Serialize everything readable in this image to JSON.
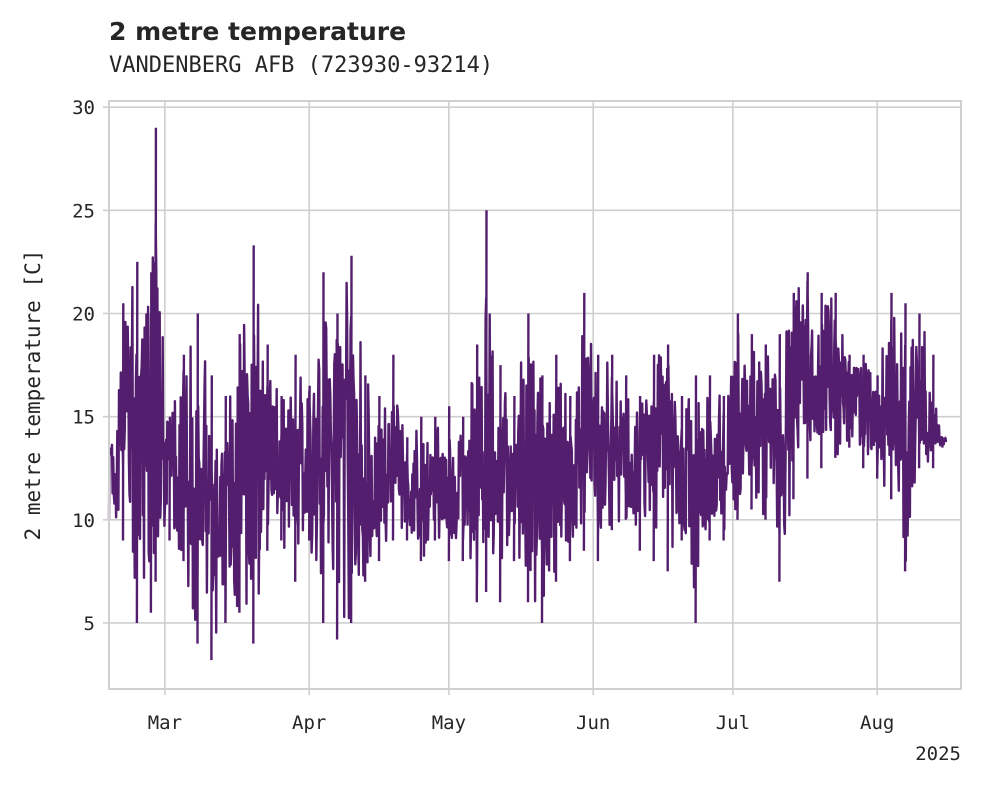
{
  "chart_data": {
    "type": "line",
    "title": "2 metre temperature",
    "subtitle": "VANDENBERG AFB (723930-93214)",
    "xlabel": "",
    "ylabel": "2 metre temperature [C]",
    "x_range": [
      "2025-02-17",
      "2025-08-19"
    ],
    "ylim": [
      1.8,
      30.3
    ],
    "y_ticks": [
      5,
      10,
      15,
      20,
      25,
      30
    ],
    "x_ticks": [
      {
        "date": "2025-03-01",
        "label": "Mar"
      },
      {
        "date": "2025-04-01",
        "label": "Apr"
      },
      {
        "date": "2025-05-01",
        "label": "May"
      },
      {
        "date": "2025-06-01",
        "label": "Jun"
      },
      {
        "date": "2025-07-01",
        "label": "Jul"
      },
      {
        "date": "2025-08-01",
        "label": "Aug"
      }
    ],
    "x_offset_label": "2025",
    "grid": true,
    "series": [
      {
        "color": "#541e6e",
        "x": [
          "2025-02-17",
          "2025-02-20",
          "2025-02-23",
          "2025-02-26",
          "2025-02-27",
          "2025-03-02",
          "2025-03-05",
          "2025-03-08",
          "2025-03-11",
          "2025-03-14",
          "2025-03-17",
          "2025-03-20",
          "2025-03-23",
          "2025-03-26",
          "2025-03-29",
          "2025-04-01",
          "2025-04-04",
          "2025-04-07",
          "2025-04-10",
          "2025-04-13",
          "2025-04-16",
          "2025-04-19",
          "2025-04-22",
          "2025-04-25",
          "2025-04-28",
          "2025-05-01",
          "2025-05-04",
          "2025-05-07",
          "2025-05-09",
          "2025-05-12",
          "2025-05-15",
          "2025-05-18",
          "2025-05-21",
          "2025-05-24",
          "2025-05-27",
          "2025-05-30",
          "2025-06-02",
          "2025-06-05",
          "2025-06-08",
          "2025-06-11",
          "2025-06-14",
          "2025-06-17",
          "2025-06-20",
          "2025-06-23",
          "2025-06-26",
          "2025-06-29",
          "2025-07-02",
          "2025-07-05",
          "2025-07-08",
          "2025-07-11",
          "2025-07-14",
          "2025-07-17",
          "2025-07-20",
          "2025-07-23",
          "2025-07-26",
          "2025-07-29",
          "2025-08-01",
          "2025-08-04",
          "2025-08-07",
          "2025-08-10",
          "2025-08-13",
          "2025-08-15"
        ],
        "max": [
          13.5,
          20.5,
          22.5,
          22.0,
          29.0,
          15.0,
          18.0,
          20.0,
          17.0,
          16.0,
          19.0,
          23.3,
          18.5,
          16.0,
          18.0,
          16.5,
          22.0,
          20.0,
          22.8,
          17.0,
          16.0,
          18.0,
          14.0,
          15.0,
          15.0,
          15.5,
          15.0,
          18.5,
          25.0,
          17.5,
          16.0,
          20.0,
          17.0,
          18.0,
          16.0,
          21.0,
          18.0,
          18.0,
          17.0,
          16.0,
          18.0,
          18.5,
          16.0,
          17.0,
          17.0,
          16.0,
          20.0,
          19.0,
          18.5,
          19.0,
          21.0,
          22.0,
          21.0,
          21.0,
          18.0,
          18.0,
          17.0,
          21.0,
          20.5,
          20.0,
          18.0,
          14.0
        ],
        "min": [
          10.0,
          9.0,
          5.0,
          5.5,
          7.0,
          9.0,
          8.0,
          4.0,
          3.2,
          5.0,
          5.5,
          4.0,
          8.5,
          9.0,
          7.0,
          9.0,
          5.0,
          4.2,
          5.0,
          7.0,
          8.0,
          9.0,
          9.0,
          8.0,
          9.0,
          8.0,
          8.0,
          6.0,
          6.5,
          6.0,
          8.0,
          6.0,
          5.0,
          7.0,
          8.0,
          8.5,
          8.0,
          9.5,
          10.0,
          8.5,
          8.0,
          7.5,
          9.0,
          5.0,
          9.0,
          9.0,
          10.0,
          10.5,
          10.0,
          7.0,
          11.0,
          12.0,
          12.5,
          13.0,
          13.5,
          12.5,
          12.0,
          11.0,
          7.5,
          12.5,
          12.5,
          13.5
        ]
      }
    ]
  }
}
